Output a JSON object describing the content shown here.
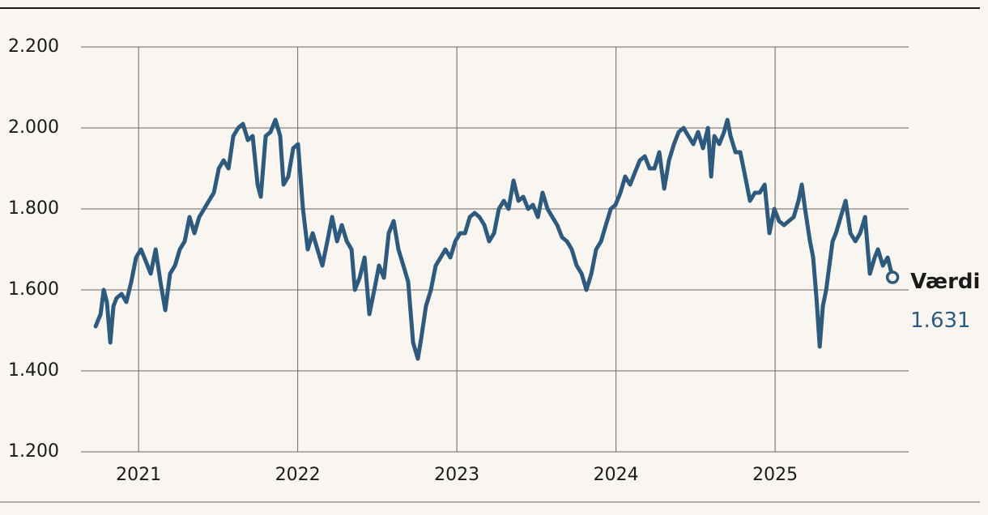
{
  "chart_data": {
    "type": "line",
    "x": [
      2020.73,
      2020.761,
      2020.781,
      2020.801,
      2020.822,
      2020.842,
      2020.862,
      2020.893,
      2020.923,
      2020.954,
      2020.984,
      2021.015,
      2021.046,
      2021.076,
      2021.107,
      2021.137,
      2021.168,
      2021.198,
      2021.229,
      2021.259,
      2021.29,
      2021.32,
      2021.351,
      2021.381,
      2021.412,
      2021.442,
      2021.473,
      2021.504,
      2021.534,
      2021.565,
      2021.595,
      2021.626,
      2021.656,
      2021.687,
      2021.717,
      2021.748,
      2021.768,
      2021.799,
      2021.829,
      2021.86,
      2021.89,
      2021.911,
      2021.941,
      2021.972,
      2022.002,
      2022.033,
      2022.063,
      2022.094,
      2022.124,
      2022.155,
      2022.186,
      2022.216,
      2022.247,
      2022.277,
      2022.308,
      2022.338,
      2022.359,
      2022.389,
      2022.42,
      2022.45,
      2022.481,
      2022.511,
      2022.542,
      2022.572,
      2022.603,
      2022.633,
      2022.664,
      2022.694,
      2022.725,
      2022.755,
      2022.776,
      2022.806,
      2022.837,
      2022.867,
      2022.898,
      2022.928,
      2022.959,
      2022.99,
      2023.02,
      2023.051,
      2023.081,
      2023.112,
      2023.142,
      2023.173,
      2023.203,
      2023.234,
      2023.264,
      2023.295,
      2023.325,
      2023.356,
      2023.387,
      2023.417,
      2023.448,
      2023.478,
      2023.509,
      2023.539,
      2023.57,
      2023.6,
      2023.631,
      2023.661,
      2023.692,
      2023.722,
      2023.753,
      2023.784,
      2023.814,
      2023.845,
      2023.875,
      2023.906,
      2023.936,
      2023.967,
      2023.997,
      2024.028,
      2024.058,
      2024.089,
      2024.119,
      2024.15,
      2024.181,
      2024.211,
      2024.242,
      2024.272,
      2024.303,
      2024.333,
      2024.364,
      2024.394,
      2024.425,
      2024.455,
      2024.486,
      2024.516,
      2024.547,
      2024.578,
      2024.598,
      2024.618,
      2024.649,
      2024.679,
      2024.7,
      2024.72,
      2024.751,
      2024.781,
      2024.812,
      2024.842,
      2024.873,
      2024.903,
      2024.934,
      2024.964,
      2024.995,
      2025.025,
      2025.056,
      2025.086,
      2025.117,
      2025.147,
      2025.168,
      2025.188,
      2025.219,
      2025.239,
      2025.26,
      2025.28,
      2025.3,
      2025.321,
      2025.341,
      2025.361,
      2025.382,
      2025.412,
      2025.443,
      2025.473,
      2025.504,
      2025.534,
      2025.565,
      2025.595,
      2025.626,
      2025.646,
      2025.677,
      2025.707,
      2025.738
    ],
    "series": [
      {
        "name": "Værdi",
        "color": "#2e5a7e",
        "values": [
          1510,
          1540,
          1600,
          1570,
          1470,
          1560,
          1580,
          1590,
          1570,
          1620,
          1680,
          1700,
          1670,
          1640,
          1700,
          1620,
          1550,
          1640,
          1660,
          1700,
          1720,
          1780,
          1740,
          1780,
          1800,
          1820,
          1840,
          1900,
          1920,
          1900,
          1980,
          2000,
          2010,
          1970,
          1980,
          1860,
          1830,
          1980,
          1990,
          2020,
          1980,
          1860,
          1880,
          1950,
          1960,
          1800,
          1700,
          1740,
          1700,
          1660,
          1720,
          1780,
          1720,
          1760,
          1720,
          1700,
          1600,
          1630,
          1680,
          1540,
          1600,
          1660,
          1630,
          1740,
          1770,
          1700,
          1660,
          1620,
          1470,
          1430,
          1480,
          1560,
          1600,
          1660,
          1680,
          1700,
          1680,
          1720,
          1740,
          1740,
          1780,
          1790,
          1780,
          1760,
          1720,
          1740,
          1800,
          1820,
          1800,
          1870,
          1820,
          1830,
          1800,
          1810,
          1780,
          1840,
          1800,
          1780,
          1760,
          1730,
          1720,
          1700,
          1660,
          1640,
          1600,
          1640,
          1700,
          1720,
          1760,
          1800,
          1810,
          1840,
          1880,
          1860,
          1890,
          1920,
          1930,
          1900,
          1900,
          1940,
          1850,
          1920,
          1960,
          1990,
          2000,
          1980,
          1960,
          1990,
          1950,
          2000,
          1880,
          1980,
          1960,
          1990,
          2020,
          1980,
          1940,
          1940,
          1880,
          1820,
          1840,
          1840,
          1860,
          1740,
          1800,
          1770,
          1760,
          1770,
          1780,
          1820,
          1860,
          1800,
          1720,
          1680,
          1580,
          1460,
          1560,
          1600,
          1660,
          1720,
          1740,
          1780,
          1820,
          1740,
          1720,
          1740,
          1780,
          1640,
          1680,
          1700,
          1660,
          1680,
          1631
        ]
      }
    ],
    "last_value": {
      "value": 1631,
      "label": "1.631"
    },
    "xlim": [
      2020.638,
      2025.839
    ],
    "xticks": [
      2021,
      2022,
      2023,
      2024,
      2025
    ],
    "ylim": [
      1200,
      2200
    ],
    "yticks": [
      {
        "value": 1200,
        "label": "1.200"
      },
      {
        "value": 1400,
        "label": "1.400"
      },
      {
        "value": 1600,
        "label": "1.600"
      },
      {
        "value": 1800,
        "label": "1.800"
      },
      {
        "value": 2000,
        "label": "2.000"
      },
      {
        "value": 2200,
        "label": "2.200"
      }
    ],
    "grid": true
  }
}
